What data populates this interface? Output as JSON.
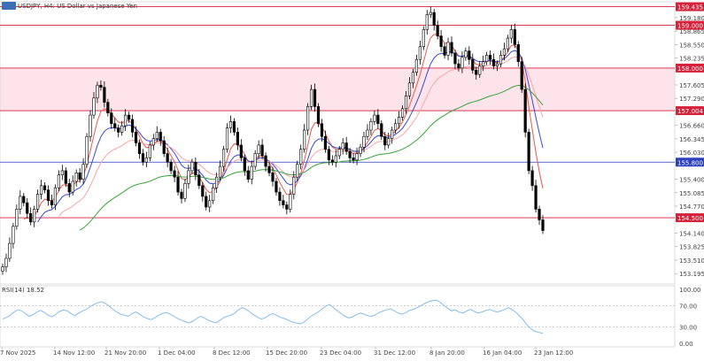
{
  "header": {
    "symbol_title": "USDJPY, H4:  US Dollar vs Japanese Yen"
  },
  "rsi_header": {
    "label": "RSI(14) 18.52"
  },
  "colors": {
    "candle": "#000000",
    "ma_fast": "#e8584f",
    "ma_mid": "#3b47d4",
    "ma_slow_pink": "#f4a6a6",
    "ma_long": "#3aa23a",
    "level_red": "#d5213a",
    "level_blue": "#2c3fbf",
    "zone_fill": "#fde4ea",
    "rsi_line": "#87bce6",
    "label_bg_red": "#d5213a",
    "label_bg_blue": "#2c3fbf"
  },
  "chart_data": [
    {
      "type": "line",
      "title": "USDJPY, H4:  US Dollar vs Japanese Yen",
      "price_scale_ticks": [
        "159.435",
        "159.180",
        "158.865",
        "158.550",
        "158.235",
        "157.920",
        "157.605",
        "157.290",
        "156.975",
        "156.660",
        "156.345",
        "156.030",
        "155.715",
        "155.400",
        "155.085",
        "154.770",
        "154.455",
        "154.140",
        "153.825",
        "153.510",
        "153.195"
      ],
      "x_tick_labels": [
        "7 Nov 2025",
        "14 Nov 12:00",
        "21 Nov 20:00",
        "1 Dec 04:00",
        "8 Dec 12:00",
        "15 Dec 20:00",
        "23 Dec 04:00",
        "31 Dec 12:00",
        "8 Jan 20:00",
        "16 Jan 04:00",
        "23 Jan 12:00"
      ],
      "ylim": [
        152.95,
        159.55
      ],
      "horizontal_levels": [
        {
          "price": 159.435,
          "label": "159.435",
          "color": "red"
        },
        {
          "price": 159.0,
          "label": "159.000",
          "color": "red"
        },
        {
          "price": 158.0,
          "label": "158.000",
          "color": "red"
        },
        {
          "price": 157.004,
          "label": "157.004",
          "color": "red"
        },
        {
          "price": 155.8,
          "label": "155.800",
          "color": "blue"
        },
        {
          "price": 154.5,
          "label": "154.500",
          "color": "red"
        }
      ],
      "shaded_zone": [
        157.004,
        158.0
      ],
      "close_series": [
        153.35,
        153.55,
        153.9,
        154.3,
        154.7,
        155.0,
        154.85,
        154.6,
        154.4,
        154.7,
        155.05,
        155.25,
        155.15,
        154.9,
        154.8,
        155.2,
        155.5,
        155.6,
        155.3,
        155.1,
        155.35,
        155.55,
        155.4,
        155.75,
        156.4,
        156.9,
        157.3,
        157.6,
        157.55,
        157.2,
        156.95,
        156.7,
        156.6,
        156.5,
        156.65,
        156.9,
        156.8,
        156.5,
        156.25,
        156.0,
        155.8,
        155.9,
        156.2,
        156.35,
        156.5,
        156.3,
        156.0,
        155.8,
        155.6,
        155.45,
        155.1,
        154.95,
        155.3,
        155.6,
        155.8,
        155.5,
        155.25,
        155.0,
        154.75,
        154.9,
        155.2,
        155.45,
        155.7,
        156.1,
        156.6,
        156.75,
        156.5,
        156.2,
        155.9,
        155.6,
        155.4,
        155.7,
        156.0,
        156.2,
        155.95,
        155.7,
        155.55,
        155.35,
        155.1,
        154.9,
        154.8,
        154.7,
        155.05,
        155.45,
        155.75,
        156.1,
        156.55,
        157.1,
        157.5,
        157.1,
        156.7,
        156.4,
        156.1,
        155.85,
        155.8,
        155.95,
        156.1,
        156.25,
        156.05,
        155.9,
        155.85,
        156.0,
        156.15,
        156.4,
        156.55,
        156.75,
        156.9,
        156.7,
        156.4,
        156.2,
        156.35,
        156.55,
        156.7,
        156.85,
        157.05,
        157.35,
        157.65,
        157.9,
        158.2,
        158.5,
        158.9,
        159.25,
        159.3,
        159.0,
        158.75,
        158.5,
        158.3,
        158.6,
        158.35,
        158.1,
        158.0,
        158.25,
        158.4,
        158.2,
        157.95,
        157.85,
        158.05,
        158.15,
        158.3,
        158.2,
        158.05,
        158.1,
        158.3,
        158.45,
        158.7,
        158.9,
        158.55,
        158.15,
        157.5,
        156.5,
        155.6,
        155.25,
        154.7,
        154.45,
        154.2
      ]
    },
    {
      "type": "line",
      "title": "RSI(14) 18.52",
      "ylim": [
        0,
        100
      ],
      "y_tick_labels": [
        "100.00",
        "70.00",
        "30.00",
        "0.00"
      ],
      "levels": [
        70,
        30
      ],
      "current_value": 18.52,
      "values": [
        45,
        48,
        52,
        58,
        62,
        60,
        55,
        50,
        53,
        58,
        61,
        57,
        52,
        49,
        54,
        59,
        62,
        60,
        55,
        51,
        56,
        60,
        63,
        68,
        72,
        75,
        77,
        74,
        69,
        63,
        58,
        54,
        52,
        50,
        55,
        58,
        54,
        49,
        46,
        44,
        47,
        52,
        55,
        57,
        54,
        50,
        46,
        43,
        40,
        38,
        41,
        46,
        50,
        47,
        43,
        40,
        38,
        42,
        47,
        50,
        52,
        56,
        62,
        66,
        63,
        58,
        53,
        48,
        45,
        47,
        52,
        55,
        52,
        48,
        46,
        43,
        40,
        38,
        36,
        38,
        44,
        50,
        54,
        58,
        64,
        69,
        72,
        66,
        60,
        55,
        50,
        47,
        49,
        53,
        56,
        54,
        51,
        50,
        53,
        57,
        60,
        62,
        64,
        60,
        56,
        54,
        57,
        61,
        63,
        66,
        70,
        74,
        77,
        79,
        80,
        76,
        70,
        65,
        60,
        62,
        58,
        56,
        60,
        63,
        59,
        56,
        58,
        61,
        63,
        60,
        58,
        60,
        63,
        66,
        62,
        57,
        50,
        42,
        33,
        26,
        22,
        20,
        18.5
      ]
    }
  ]
}
